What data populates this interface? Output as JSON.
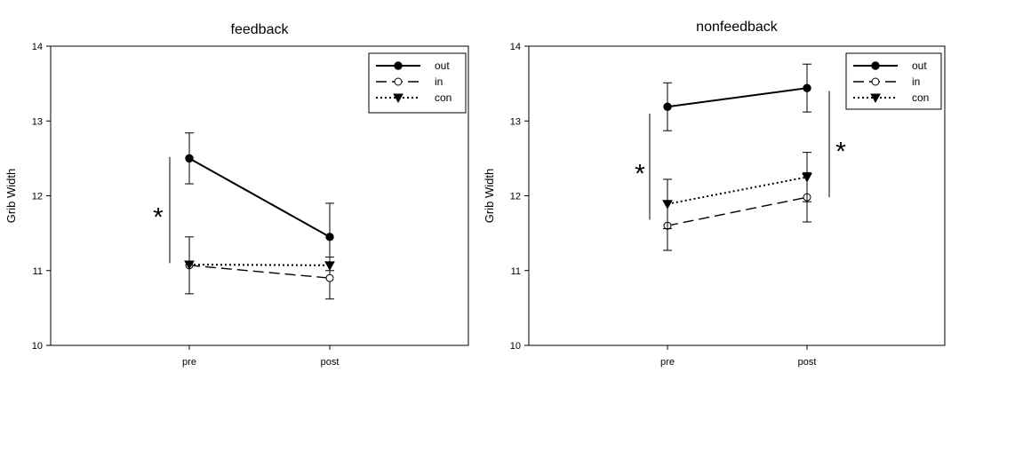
{
  "chart_data": [
    {
      "type": "line",
      "title": "feedback",
      "xlabel": "",
      "ylabel": "Grib Width",
      "categories": [
        "pre",
        "post"
      ],
      "ylim": [
        10,
        14
      ],
      "yticks": [
        10,
        11,
        12,
        13,
        14
      ],
      "legend_position": "top-right",
      "grid": false,
      "series": [
        {
          "name": "out",
          "style": "solid",
          "marker": "filled-circle",
          "values": [
            12.5,
            11.45
          ],
          "errors": [
            0.34,
            0.45
          ]
        },
        {
          "name": "in",
          "style": "dashed",
          "marker": "open-circle",
          "values": [
            11.07,
            10.9
          ],
          "errors": [
            0.38,
            0.28
          ]
        },
        {
          "name": "con",
          "style": "dotted",
          "marker": "filled-triangle-down",
          "values": [
            11.08,
            11.07
          ],
          "errors": [
            0,
            0
          ]
        }
      ],
      "annotations": [
        {
          "text": "*",
          "side": "left",
          "x_category": "pre",
          "y_range": [
            11.1,
            12.52
          ]
        }
      ]
    },
    {
      "type": "line",
      "title": "nonfeedback",
      "xlabel": "",
      "ylabel": "Grib Width",
      "categories": [
        "pre",
        "post"
      ],
      "ylim": [
        10,
        14
      ],
      "yticks": [
        10,
        11,
        12,
        13,
        14
      ],
      "legend_position": "top-right",
      "grid": false,
      "series": [
        {
          "name": "out",
          "style": "solid",
          "marker": "filled-circle",
          "values": [
            13.19,
            13.44
          ],
          "errors": [
            0.32,
            0.32
          ]
        },
        {
          "name": "in",
          "style": "dashed",
          "marker": "open-circle",
          "values": [
            11.6,
            11.98
          ],
          "errors": [
            0.33,
            0.33
          ]
        },
        {
          "name": "con",
          "style": "dotted",
          "marker": "filled-triangle-down",
          "values": [
            11.89,
            12.25
          ],
          "errors": [
            0.33,
            0.33
          ]
        }
      ],
      "annotations": [
        {
          "text": "*",
          "side": "left",
          "x_category": "pre",
          "y_range": [
            11.68,
            13.1
          ]
        },
        {
          "text": "*",
          "side": "right",
          "x_category": "post",
          "y_range": [
            11.98,
            13.4
          ]
        }
      ]
    }
  ]
}
